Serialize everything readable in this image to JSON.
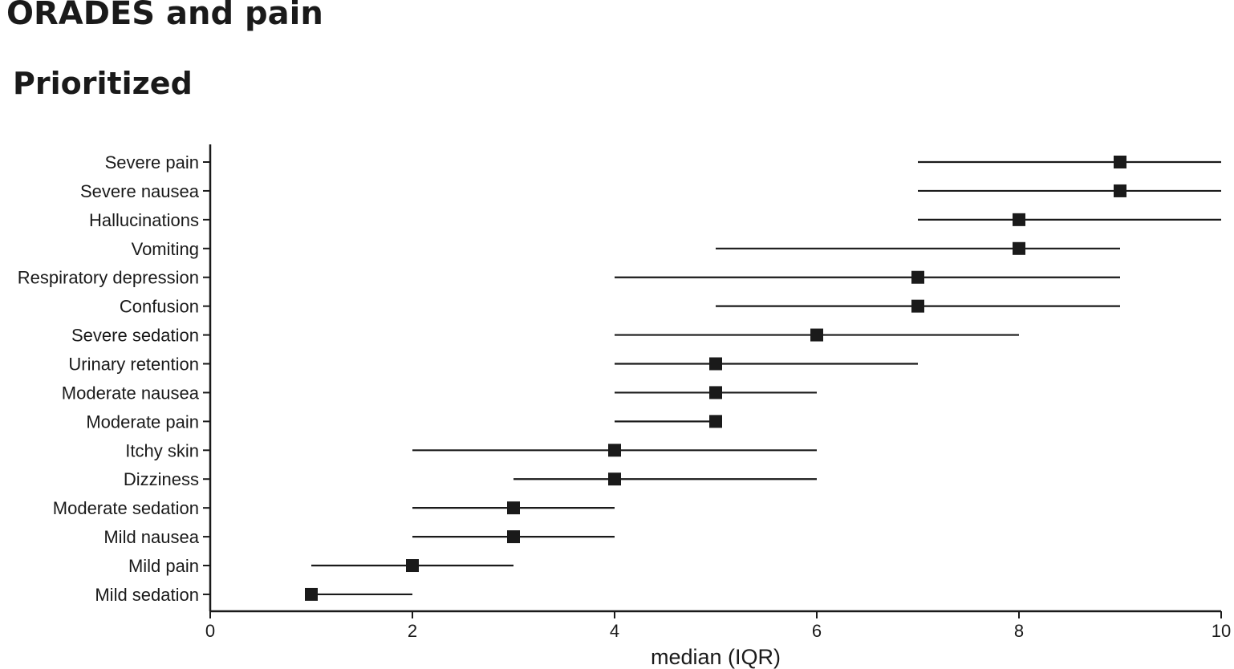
{
  "title": "ORADES and pain",
  "subtitle": "Prioritized",
  "chart_data": {
    "type": "dot-range",
    "xlabel": "median (IQR)",
    "ylabel": "",
    "xlim": [
      0,
      10
    ],
    "xticks": [
      0,
      2,
      4,
      6,
      8,
      10
    ],
    "grid": false,
    "color": "#1a1a1a",
    "categories": [
      "Severe pain",
      "Severe nausea",
      "Hallucinations",
      "Vomiting",
      "Respiratory depression",
      "Confusion",
      "Severe sedation",
      "Urinary retention",
      "Moderate nausea",
      "Moderate pain",
      "Itchy skin",
      "Dizziness",
      "Moderate sedation",
      "Mild nausea",
      "Mild pain",
      "Mild sedation"
    ],
    "median": [
      9,
      9,
      8,
      8,
      7,
      7,
      6,
      5,
      5,
      5,
      4,
      4,
      3,
      3,
      2,
      1
    ],
    "q1": [
      7,
      7,
      7,
      5,
      4,
      5,
      4,
      4,
      4,
      4,
      2,
      3,
      2,
      2,
      1,
      1
    ],
    "q3": [
      10,
      10,
      10,
      9,
      9,
      9,
      8,
      7,
      6,
      5,
      6,
      6,
      4,
      4,
      3,
      2
    ]
  }
}
